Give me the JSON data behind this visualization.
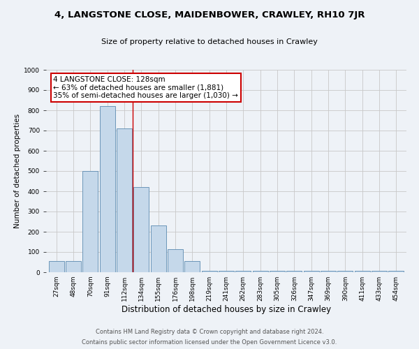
{
  "title": "4, LANGSTONE CLOSE, MAIDENBOWER, CRAWLEY, RH10 7JR",
  "subtitle": "Size of property relative to detached houses in Crawley",
  "xlabel": "Distribution of detached houses by size in Crawley",
  "ylabel": "Number of detached properties",
  "categories": [
    "27sqm",
    "48sqm",
    "70sqm",
    "91sqm",
    "112sqm",
    "134sqm",
    "155sqm",
    "176sqm",
    "198sqm",
    "219sqm",
    "241sqm",
    "262sqm",
    "283sqm",
    "305sqm",
    "326sqm",
    "347sqm",
    "369sqm",
    "390sqm",
    "411sqm",
    "433sqm",
    "454sqm"
  ],
  "values": [
    55,
    55,
    500,
    820,
    710,
    420,
    230,
    115,
    55,
    8,
    8,
    8,
    8,
    8,
    8,
    8,
    8,
    8,
    8,
    8,
    8
  ],
  "bar_color": "#c5d8ea",
  "bar_edgecolor": "#5a8ab0",
  "vline_x": 4.5,
  "vline_color": "#cc0000",
  "annotation_text": "4 LANGSTONE CLOSE: 128sqm\n← 63% of detached houses are smaller (1,881)\n35% of semi-detached houses are larger (1,030) →",
  "annotation_box_edgecolor": "#cc0000",
  "ylim": [
    0,
    1000
  ],
  "yticks": [
    0,
    100,
    200,
    300,
    400,
    500,
    600,
    700,
    800,
    900,
    1000
  ],
  "footer1": "Contains HM Land Registry data © Crown copyright and database right 2024.",
  "footer2": "Contains public sector information licensed under the Open Government Licence v3.0.",
  "bg_color": "#eef2f7",
  "plot_bg_color": "#eef2f7",
  "grid_color": "#c8c8c8",
  "title_fontsize": 9.5,
  "subtitle_fontsize": 8,
  "ylabel_fontsize": 7.5,
  "xlabel_fontsize": 8.5,
  "tick_fontsize": 6.5,
  "annotation_fontsize": 7.5,
  "footer_fontsize": 6
}
